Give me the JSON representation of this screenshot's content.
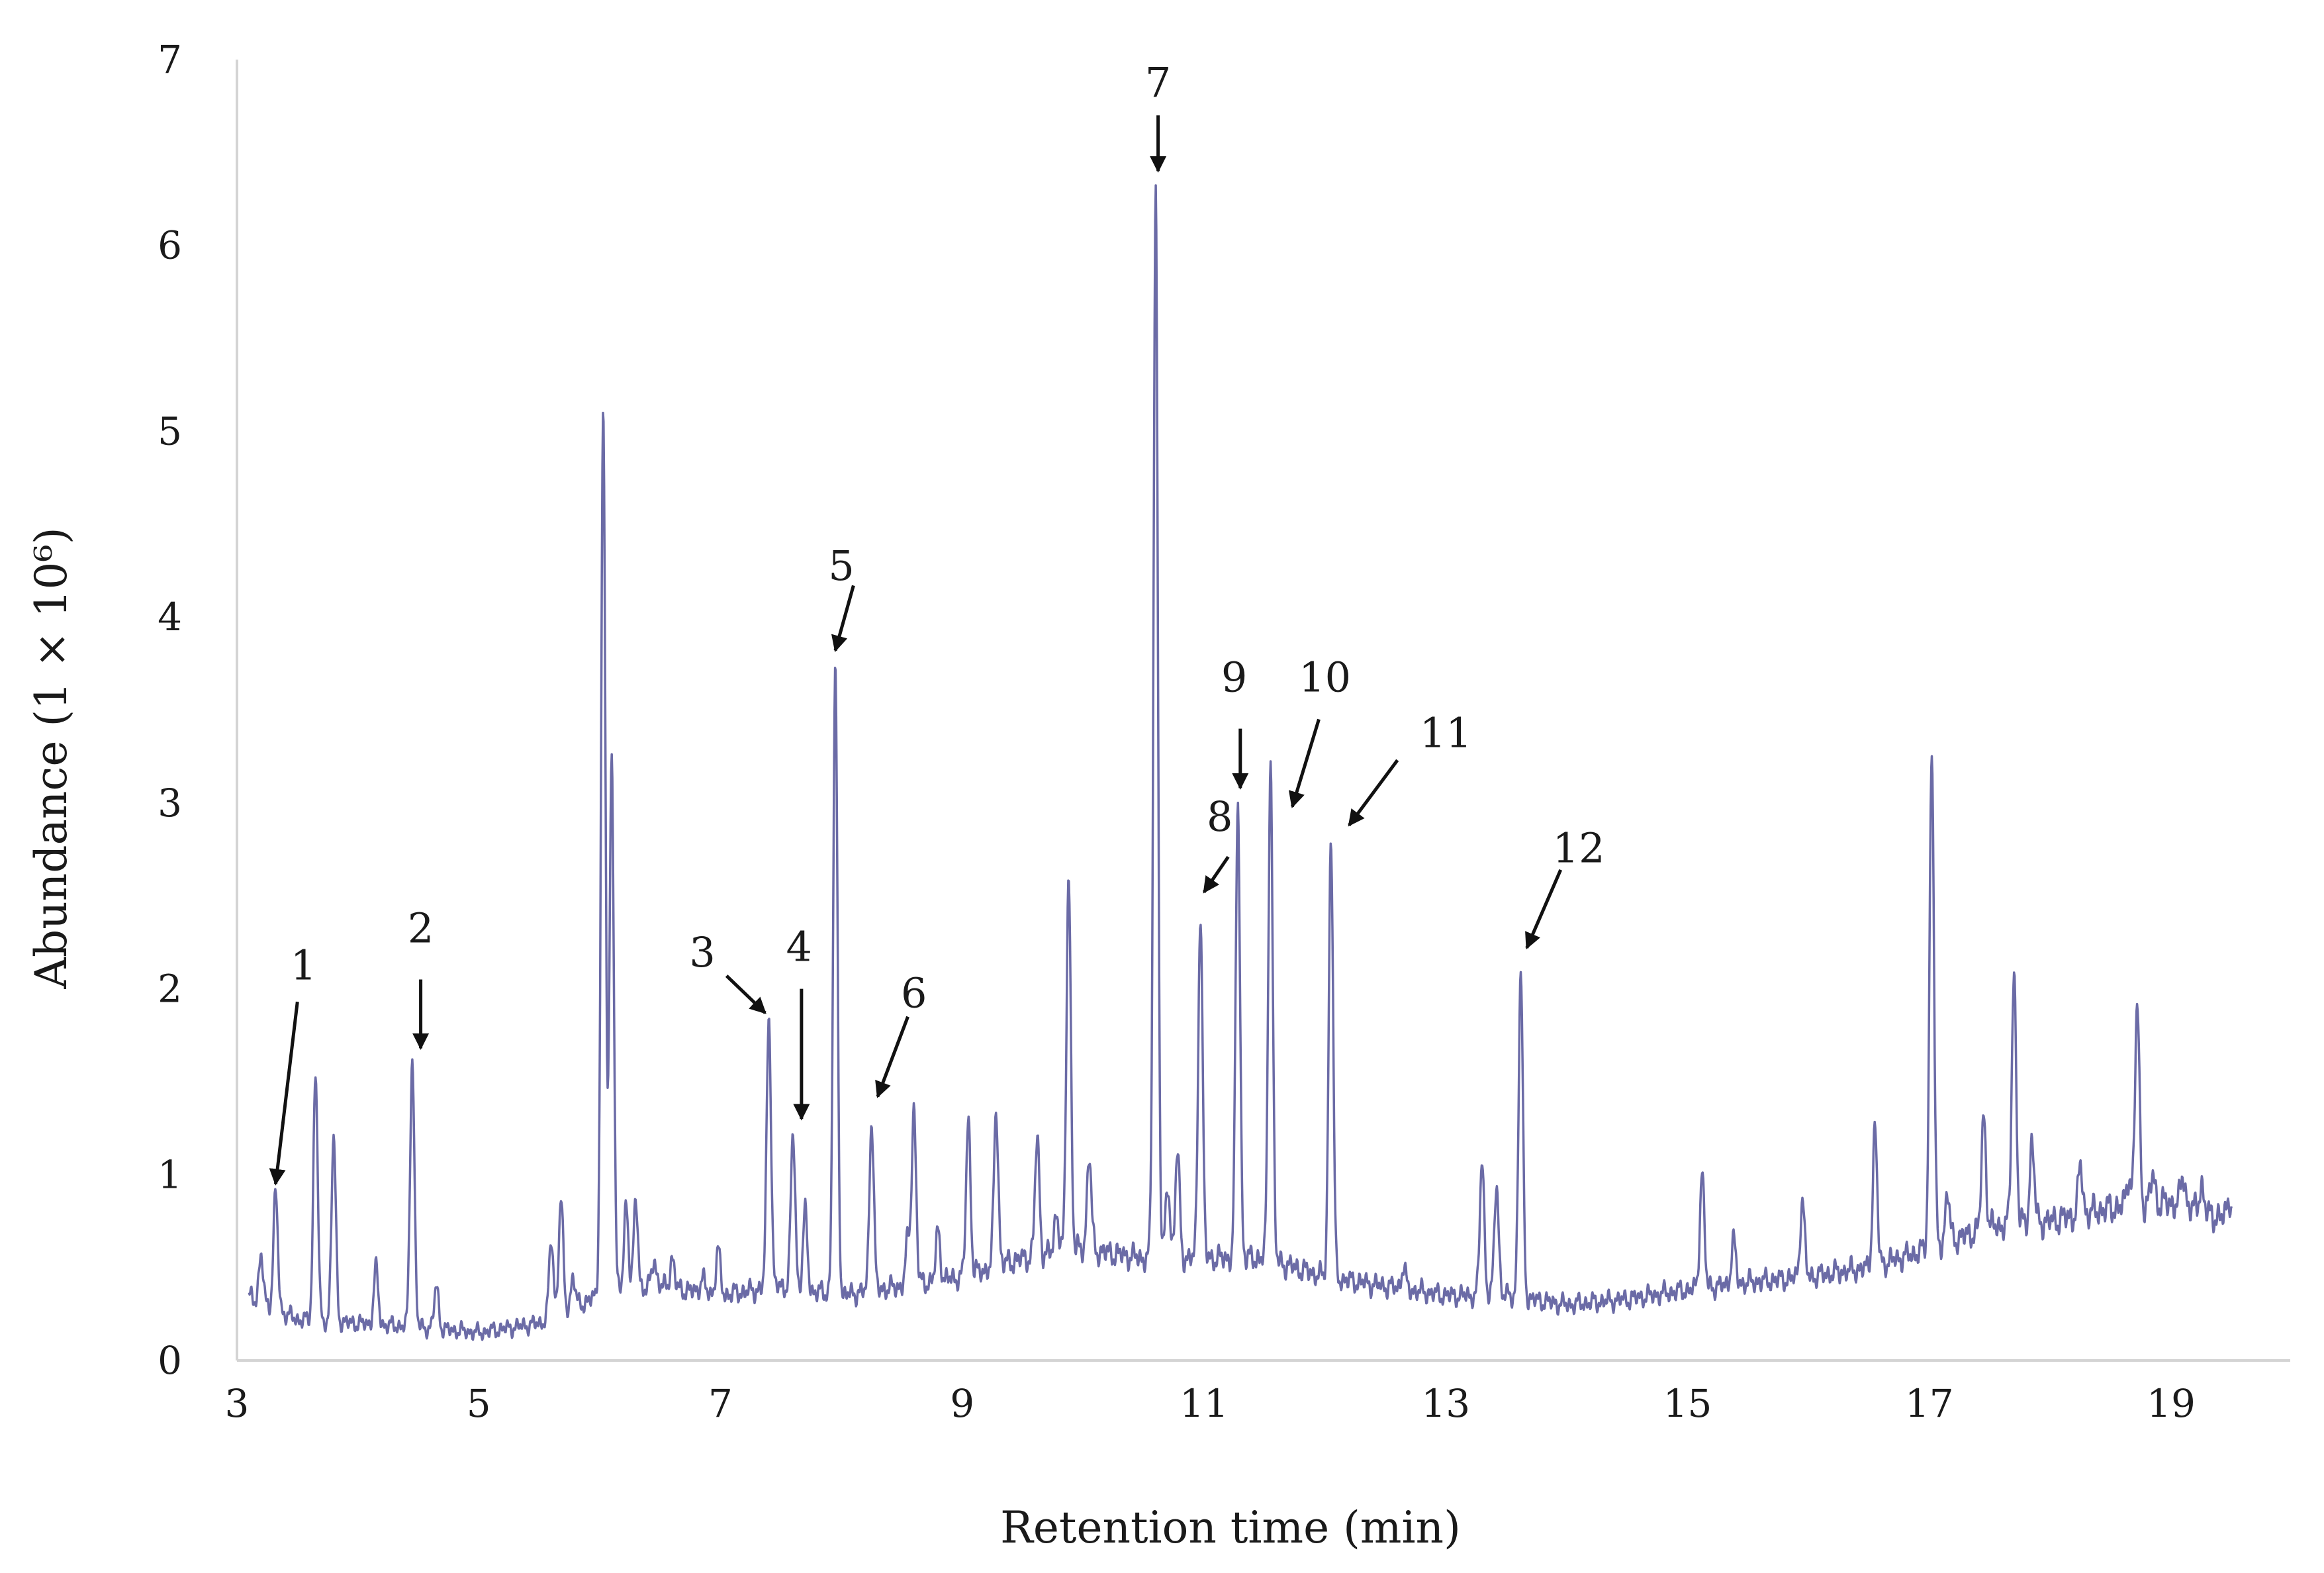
{
  "chart_data": {
    "type": "line",
    "title": "",
    "xlabel": "Retention time (min)",
    "ylabel": "Abundance (1 × 10⁶)",
    "xlim": [
      3,
      20
    ],
    "ylim": [
      0,
      7
    ],
    "x_ticks": [
      3,
      5,
      7,
      9,
      11,
      13,
      15,
      17,
      19
    ],
    "y_ticks": [
      0,
      1,
      2,
      3,
      4,
      5,
      6,
      7
    ],
    "grid": false,
    "line_color": "#6b6ba6",
    "baseline": [
      [
        3.1,
        0.35
      ],
      [
        3.5,
        0.22
      ],
      [
        4.0,
        0.2
      ],
      [
        4.5,
        0.18
      ],
      [
        5.0,
        0.15
      ],
      [
        5.5,
        0.2
      ],
      [
        6.0,
        0.35
      ],
      [
        6.5,
        0.4
      ],
      [
        7.0,
        0.35
      ],
      [
        7.5,
        0.4
      ],
      [
        8.0,
        0.35
      ],
      [
        8.5,
        0.4
      ],
      [
        9.0,
        0.45
      ],
      [
        9.5,
        0.55
      ],
      [
        10.0,
        0.6
      ],
      [
        10.5,
        0.55
      ],
      [
        11.0,
        0.55
      ],
      [
        11.5,
        0.55
      ],
      [
        12.0,
        0.45
      ],
      [
        12.5,
        0.4
      ],
      [
        13.0,
        0.35
      ],
      [
        13.5,
        0.35
      ],
      [
        14.0,
        0.3
      ],
      [
        14.5,
        0.33
      ],
      [
        15.0,
        0.38
      ],
      [
        15.5,
        0.42
      ],
      [
        16.0,
        0.45
      ],
      [
        16.5,
        0.5
      ],
      [
        17.0,
        0.6
      ],
      [
        17.5,
        0.72
      ],
      [
        18.0,
        0.75
      ],
      [
        18.5,
        0.82
      ],
      [
        19.0,
        0.85
      ],
      [
        19.5,
        0.75
      ]
    ],
    "peaks": [
      {
        "rt": 3.2,
        "abundance": 0.55
      },
      {
        "rt": 3.32,
        "abundance": 0.9
      },
      {
        "rt": 3.65,
        "abundance": 1.55
      },
      {
        "rt": 3.8,
        "abundance": 1.2
      },
      {
        "rt": 4.15,
        "abundance": 0.5
      },
      {
        "rt": 4.45,
        "abundance": 1.63
      },
      {
        "rt": 4.65,
        "abundance": 0.4
      },
      {
        "rt": 5.6,
        "abundance": 0.65
      },
      {
        "rt": 5.68,
        "abundance": 0.87
      },
      {
        "rt": 5.78,
        "abundance": 0.45
      },
      {
        "rt": 6.03,
        "abundance": 5.1
      },
      {
        "rt": 6.1,
        "abundance": 3.25
      },
      {
        "rt": 6.22,
        "abundance": 0.85
      },
      {
        "rt": 6.3,
        "abundance": 0.85
      },
      {
        "rt": 6.45,
        "abundance": 0.55
      },
      {
        "rt": 6.6,
        "abundance": 0.55
      },
      {
        "rt": 6.85,
        "abundance": 0.45
      },
      {
        "rt": 6.98,
        "abundance": 0.6
      },
      {
        "rt": 7.4,
        "abundance": 1.87
      },
      {
        "rt": 7.6,
        "abundance": 1.22
      },
      {
        "rt": 7.7,
        "abundance": 0.8
      },
      {
        "rt": 7.95,
        "abundance": 3.7
      },
      {
        "rt": 8.25,
        "abundance": 1.3
      },
      {
        "rt": 8.55,
        "abundance": 0.65
      },
      {
        "rt": 8.6,
        "abundance": 1.35
      },
      {
        "rt": 8.8,
        "abundance": 0.7
      },
      {
        "rt": 9.05,
        "abundance": 1.3
      },
      {
        "rt": 9.28,
        "abundance": 1.35
      },
      {
        "rt": 9.62,
        "abundance": 1.2
      },
      {
        "rt": 9.78,
        "abundance": 0.8
      },
      {
        "rt": 9.88,
        "abundance": 2.62
      },
      {
        "rt": 10.05,
        "abundance": 1.1
      },
      {
        "rt": 10.6,
        "abundance": 6.3
      },
      {
        "rt": 10.7,
        "abundance": 0.95
      },
      {
        "rt": 10.78,
        "abundance": 1.12
      },
      {
        "rt": 10.97,
        "abundance": 2.42
      },
      {
        "rt": 11.28,
        "abundance": 3.0
      },
      {
        "rt": 11.55,
        "abundance": 3.25
      },
      {
        "rt": 12.05,
        "abundance": 2.82
      },
      {
        "rt": 12.65,
        "abundance": 0.5
      },
      {
        "rt": 13.3,
        "abundance": 1.08
      },
      {
        "rt": 13.42,
        "abundance": 0.95
      },
      {
        "rt": 13.62,
        "abundance": 2.08
      },
      {
        "rt": 15.12,
        "abundance": 1.02
      },
      {
        "rt": 15.38,
        "abundance": 0.65
      },
      {
        "rt": 15.95,
        "abundance": 0.87
      },
      {
        "rt": 16.55,
        "abundance": 1.25
      },
      {
        "rt": 17.02,
        "abundance": 3.3
      },
      {
        "rt": 17.15,
        "abundance": 0.9
      },
      {
        "rt": 17.45,
        "abundance": 1.32
      },
      {
        "rt": 17.7,
        "abundance": 2.1
      },
      {
        "rt": 17.85,
        "abundance": 1.18
      },
      {
        "rt": 18.25,
        "abundance": 1.05
      },
      {
        "rt": 18.65,
        "abundance": 1.0
      },
      {
        "rt": 18.72,
        "abundance": 1.92
      },
      {
        "rt": 18.85,
        "abundance": 1.0
      },
      {
        "rt": 19.1,
        "abundance": 1.0
      },
      {
        "rt": 19.25,
        "abundance": 0.95
      },
      {
        "rt": 19.48,
        "abundance": 0.88
      }
    ],
    "annotations": [
      {
        "label": "1",
        "label_at": [
          3.55,
          2.05
        ],
        "from": [
          3.5,
          1.93
        ],
        "to": [
          3.32,
          0.95
        ]
      },
      {
        "label": "2",
        "label_at": [
          4.52,
          2.25
        ],
        "from": [
          4.52,
          2.05
        ],
        "to": [
          4.52,
          1.68
        ]
      },
      {
        "label": "3",
        "label_at": [
          6.85,
          2.12
        ],
        "from": [
          7.05,
          2.07
        ],
        "to": [
          7.37,
          1.87
        ]
      },
      {
        "label": "4",
        "label_at": [
          7.65,
          2.15
        ],
        "from": [
          7.67,
          2.0
        ],
        "to": [
          7.67,
          1.3
        ]
      },
      {
        "label": "5",
        "label_at": [
          8.0,
          4.2
        ],
        "from": [
          8.1,
          4.17
        ],
        "to": [
          7.95,
          3.82
        ]
      },
      {
        "label": "6",
        "label_at": [
          8.6,
          1.9
        ],
        "from": [
          8.55,
          1.85
        ],
        "to": [
          8.3,
          1.42
        ]
      },
      {
        "label": "7",
        "label_at": [
          10.62,
          6.8
        ],
        "from": [
          10.62,
          6.7
        ],
        "to": [
          10.62,
          6.4
        ]
      },
      {
        "label": "8",
        "label_at": [
          11.13,
          2.85
        ],
        "from": [
          11.2,
          2.71
        ],
        "to": [
          11.0,
          2.52
        ]
      },
      {
        "label": "9",
        "label_at": [
          11.25,
          3.6
        ],
        "from": [
          11.3,
          3.4
        ],
        "to": [
          11.3,
          3.08
        ]
      },
      {
        "label": "10",
        "label_at": [
          12.0,
          3.6
        ],
        "from": [
          11.95,
          3.45
        ],
        "to": [
          11.73,
          2.98
        ]
      },
      {
        "label": "11",
        "label_at": [
          13.0,
          3.3
        ],
        "from": [
          12.6,
          3.23
        ],
        "to": [
          12.2,
          2.88
        ]
      },
      {
        "label": "12",
        "label_at": [
          14.1,
          2.68
        ],
        "from": [
          13.95,
          2.64
        ],
        "to": [
          13.67,
          2.22
        ]
      }
    ]
  }
}
